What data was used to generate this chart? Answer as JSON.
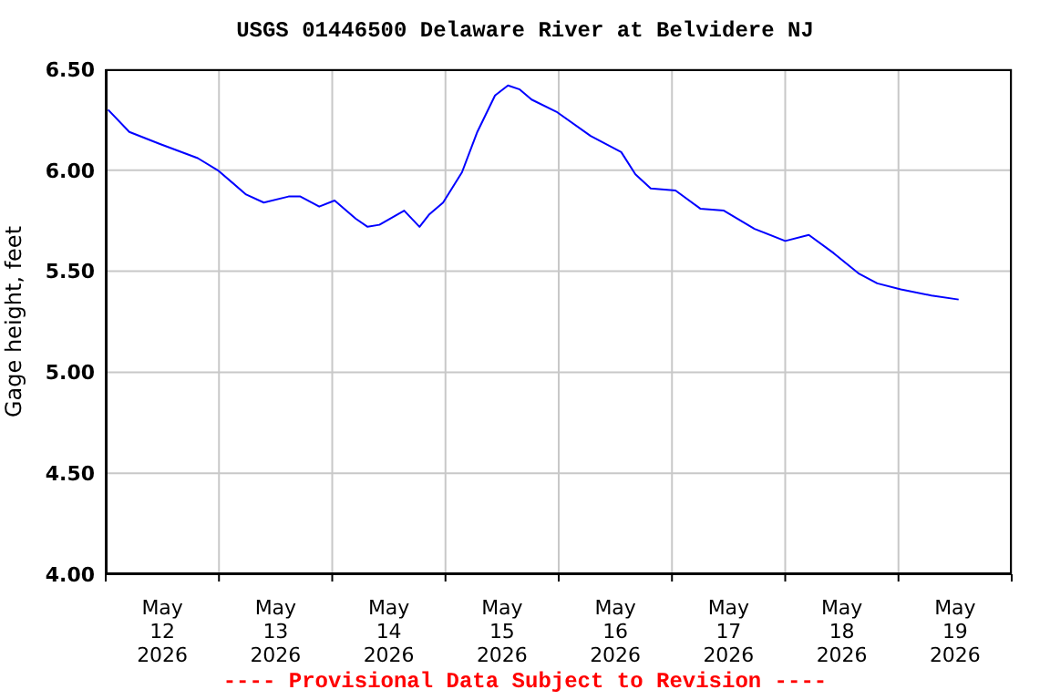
{
  "chart_data": {
    "type": "line",
    "title": "USGS 01446500 Delaware River at Belvidere NJ",
    "ylabel": "Gage height, feet",
    "annotations": [
      "---- Provisional Data Subject to Revision ----"
    ],
    "x": [
      "2026-05-12T00:30",
      "2026-05-12T05:00",
      "2026-05-12T11:30",
      "2026-05-12T19:30",
      "2026-05-12T23:45",
      "2026-05-13T05:45",
      "2026-05-13T09:30",
      "2026-05-13T14:45",
      "2026-05-13T17:15",
      "2026-05-13T21:15",
      "2026-05-14T00:30",
      "2026-05-14T05:00",
      "2026-05-14T07:30",
      "2026-05-14T10:00",
      "2026-05-14T15:15",
      "2026-05-14T18:30",
      "2026-05-14T20:30",
      "2026-05-14T23:30",
      "2026-05-15T03:30",
      "2026-05-15T06:45",
      "2026-05-15T10:30",
      "2026-05-15T13:15",
      "2026-05-15T15:45",
      "2026-05-15T18:15",
      "2026-05-15T23:30",
      "2026-05-16T06:45",
      "2026-05-16T13:15",
      "2026-05-16T16:15",
      "2026-05-16T19:30",
      "2026-05-17T00:45",
      "2026-05-17T06:00",
      "2026-05-17T11:00",
      "2026-05-17T17:30",
      "2026-05-18T00:00",
      "2026-05-18T05:00",
      "2026-05-18T10:15",
      "2026-05-18T15:30",
      "2026-05-18T19:30",
      "2026-05-19T00:30",
      "2026-05-19T07:00",
      "2026-05-19T12:45"
    ],
    "series": [
      {
        "color": "#0000ff",
        "values": [
          6.3,
          6.19,
          6.13,
          6.06,
          6.0,
          5.88,
          5.84,
          5.87,
          5.87,
          5.82,
          5.85,
          5.76,
          5.72,
          5.73,
          5.8,
          5.72,
          5.78,
          5.84,
          5.99,
          6.19,
          6.37,
          6.42,
          6.4,
          6.35,
          6.29,
          6.17,
          6.09,
          5.98,
          5.91,
          5.9,
          5.81,
          5.8,
          5.71,
          5.65,
          5.68,
          5.59,
          5.49,
          5.44,
          5.41,
          5.38,
          5.36
        ]
      }
    ],
    "xlim": [
      "2026-05-12T00:00",
      "2026-05-20T00:00"
    ],
    "xticks": [
      {
        "value": "2026-05-12T00:00",
        "label": null
      },
      {
        "value": "2026-05-12T12:00",
        "label": "May 12 2026"
      },
      {
        "value": "2026-05-13T00:00",
        "label": null
      },
      {
        "value": "2026-05-13T12:00",
        "label": "May 13 2026"
      },
      {
        "value": "2026-05-14T00:00",
        "label": null
      },
      {
        "value": "2026-05-14T12:00",
        "label": "May 14 2026"
      },
      {
        "value": "2026-05-15T00:00",
        "label": null
      },
      {
        "value": "2026-05-15T12:00",
        "label": "May 15 2026"
      },
      {
        "value": "2026-05-16T00:00",
        "label": null
      },
      {
        "value": "2026-05-16T12:00",
        "label": "May 16 2026"
      },
      {
        "value": "2026-05-17T00:00",
        "label": null
      },
      {
        "value": "2026-05-17T12:00",
        "label": "May 17 2026"
      },
      {
        "value": "2026-05-18T00:00",
        "label": null
      },
      {
        "value": "2026-05-18T12:00",
        "label": "May 18 2026"
      },
      {
        "value": "2026-05-19T00:00",
        "label": null
      },
      {
        "value": "2026-05-19T12:00",
        "label": "May 19 2026"
      },
      {
        "value": "2026-05-20T00:00",
        "label": null
      }
    ],
    "ylim": [
      4.0,
      6.5
    ],
    "yticks": [
      {
        "value": 4.0,
        "label": "4.00"
      },
      {
        "value": 4.5,
        "label": "4.50"
      },
      {
        "value": 5.0,
        "label": "5.00"
      },
      {
        "value": 5.5,
        "label": "5.50"
      },
      {
        "value": 6.0,
        "label": "6.00"
      },
      {
        "value": 6.5,
        "label": "6.50"
      }
    ],
    "grid": true,
    "legend": false,
    "marker": "none",
    "line_style": "solid"
  }
}
